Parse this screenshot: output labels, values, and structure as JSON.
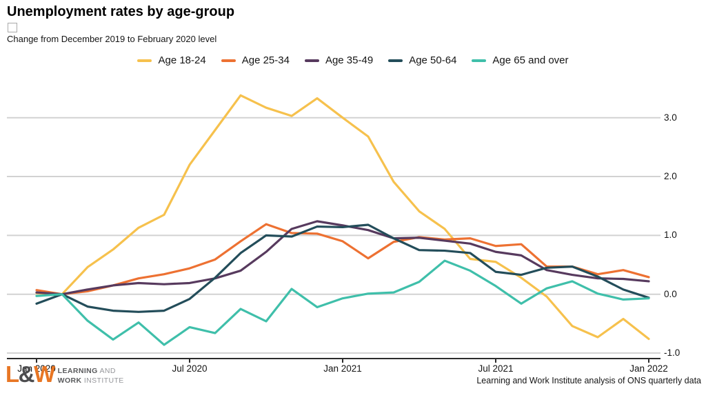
{
  "header": {
    "title": "Unemployment rates by age-group",
    "subtitle": "Change from December 2019 to February 2020 level"
  },
  "chart_data": {
    "type": "line",
    "x": [
      "Jan 2020",
      "Feb 2020",
      "Mar 2020",
      "Apr 2020",
      "May 2020",
      "Jun 2020",
      "Jul 2020",
      "Aug 2020",
      "Sep 2020",
      "Oct 2020",
      "Nov 2020",
      "Dec 2020",
      "Jan 2021",
      "Feb 2021",
      "Mar 2021",
      "Apr 2021",
      "May 2021",
      "Jun 2021",
      "Jul 2021",
      "Aug 2021",
      "Sep 2021",
      "Oct 2021",
      "Nov 2021",
      "Dec 2021",
      "Jan 2022"
    ],
    "series": [
      {
        "name": "Age 18-24",
        "color": "#F6C14D",
        "values": [
          0.02,
          0.0,
          0.46,
          0.76,
          1.13,
          1.35,
          2.2,
          2.79,
          3.38,
          3.17,
          3.03,
          3.33,
          3.0,
          2.68,
          1.91,
          1.41,
          1.11,
          0.6,
          0.55,
          0.28,
          -0.04,
          -0.54,
          -0.73,
          -0.42,
          -0.76
        ]
      },
      {
        "name": "Age 25-34",
        "color": "#ED7132",
        "values": [
          0.07,
          0.0,
          0.05,
          0.15,
          0.27,
          0.34,
          0.44,
          0.59,
          0.9,
          1.19,
          1.04,
          1.03,
          0.9,
          0.61,
          0.89,
          0.97,
          0.93,
          0.95,
          0.82,
          0.85,
          0.47,
          0.47,
          0.34,
          0.41,
          0.29
        ]
      },
      {
        "name": "Age 35-49",
        "color": "#573A5E",
        "values": [
          0.03,
          0.0,
          0.08,
          0.15,
          0.19,
          0.17,
          0.19,
          0.27,
          0.4,
          0.72,
          1.11,
          1.24,
          1.17,
          1.09,
          0.95,
          0.96,
          0.91,
          0.86,
          0.72,
          0.66,
          0.41,
          0.33,
          0.27,
          0.26,
          0.22
        ]
      },
      {
        "name": "Age 50-64",
        "color": "#234D5A",
        "values": [
          -0.16,
          0.0,
          -0.21,
          -0.28,
          -0.3,
          -0.28,
          -0.08,
          0.28,
          0.7,
          1.0,
          0.98,
          1.15,
          1.14,
          1.18,
          0.95,
          0.75,
          0.74,
          0.7,
          0.38,
          0.33,
          0.45,
          0.47,
          0.3,
          0.08,
          -0.06
        ]
      },
      {
        "name": "Age 65 and over",
        "color": "#3FBFAA",
        "values": [
          -0.03,
          0.0,
          -0.45,
          -0.77,
          -0.48,
          -0.86,
          -0.56,
          -0.66,
          -0.25,
          -0.46,
          0.09,
          -0.22,
          -0.07,
          0.01,
          0.03,
          0.21,
          0.57,
          0.4,
          0.14,
          -0.16,
          0.1,
          0.22,
          0.01,
          -0.09,
          -0.07
        ]
      }
    ],
    "ylim": [
      -1.0,
      3.5
    ],
    "yticks": [
      3.0,
      2.0,
      1.0,
      0.0,
      -1.0
    ],
    "ytick_labels": [
      "3.0",
      "2.0",
      "1.0",
      "0.0",
      "-1.0"
    ],
    "xticks": [
      {
        "label": "Jan 2020",
        "month_index": 0
      },
      {
        "label": "Jul 2020",
        "month_index": 6
      },
      {
        "label": "Jan 2021",
        "month_index": 12
      },
      {
        "label": "Jul 2021",
        "month_index": 18
      },
      {
        "label": "Jan 2022",
        "month_index": 24
      }
    ],
    "grid": "horizontal",
    "legend_position": "top",
    "colors": {
      "gridline": "#d2d2d2",
      "axis": "#2b2b2b"
    }
  },
  "footer": {
    "logo": {
      "mark_l": "L",
      "mark_amp": "&",
      "mark_w": "W",
      "mark_color": "#E87624",
      "amp_color": "#4D4D4F",
      "line1_bold": "LEARNING",
      "line1_rest": " AND",
      "line2_bold": "WORK",
      "line2_rest": " INSTITUTE"
    },
    "source": "Learning and Work Institute analysis of ONS quarterly data"
  }
}
